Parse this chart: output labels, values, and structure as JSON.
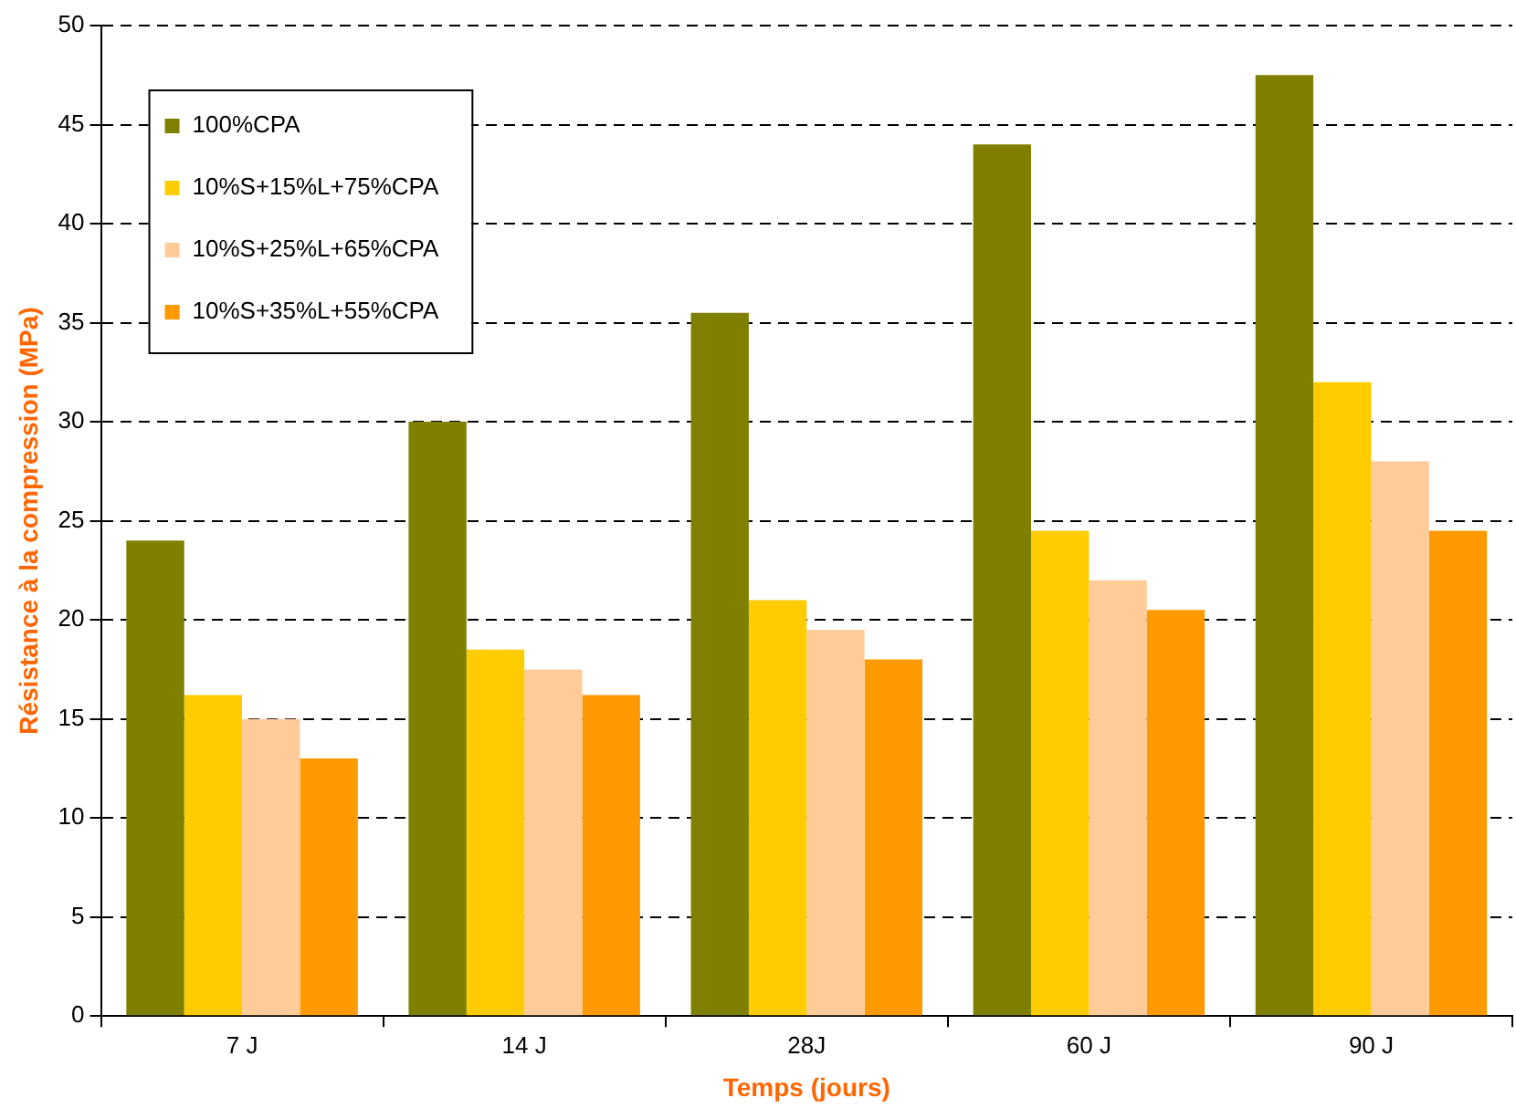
{
  "chart_data": {
    "type": "bar",
    "xlabel": "Temps (jours)",
    "ylabel": "Résistance à la compression (MPa)",
    "categories": [
      "7 J",
      "14 J",
      "28J",
      "60 J",
      "90 J"
    ],
    "series": [
      {
        "name": "100%CPA",
        "color": "#808000",
        "values": [
          24,
          30,
          35.5,
          44,
          47.5
        ]
      },
      {
        "name": "10%S+15%L+75%CPA",
        "color": "#ffcc00",
        "values": [
          16.2,
          18.5,
          21,
          24.5,
          32
        ]
      },
      {
        "name": "10%S+25%L+65%CPA",
        "color": "#ffcc99",
        "values": [
          15,
          17.5,
          19.5,
          22,
          28
        ]
      },
      {
        "name": "10%S+35%L+55%CPA",
        "color": "#ff9900",
        "values": [
          13,
          16.2,
          18,
          20.5,
          24.5
        ]
      }
    ],
    "ylim": [
      0,
      50
    ],
    "yticks": [
      0,
      5,
      10,
      15,
      20,
      25,
      30,
      35,
      40,
      45,
      50
    ],
    "grid": "y",
    "legend": "top left"
  }
}
